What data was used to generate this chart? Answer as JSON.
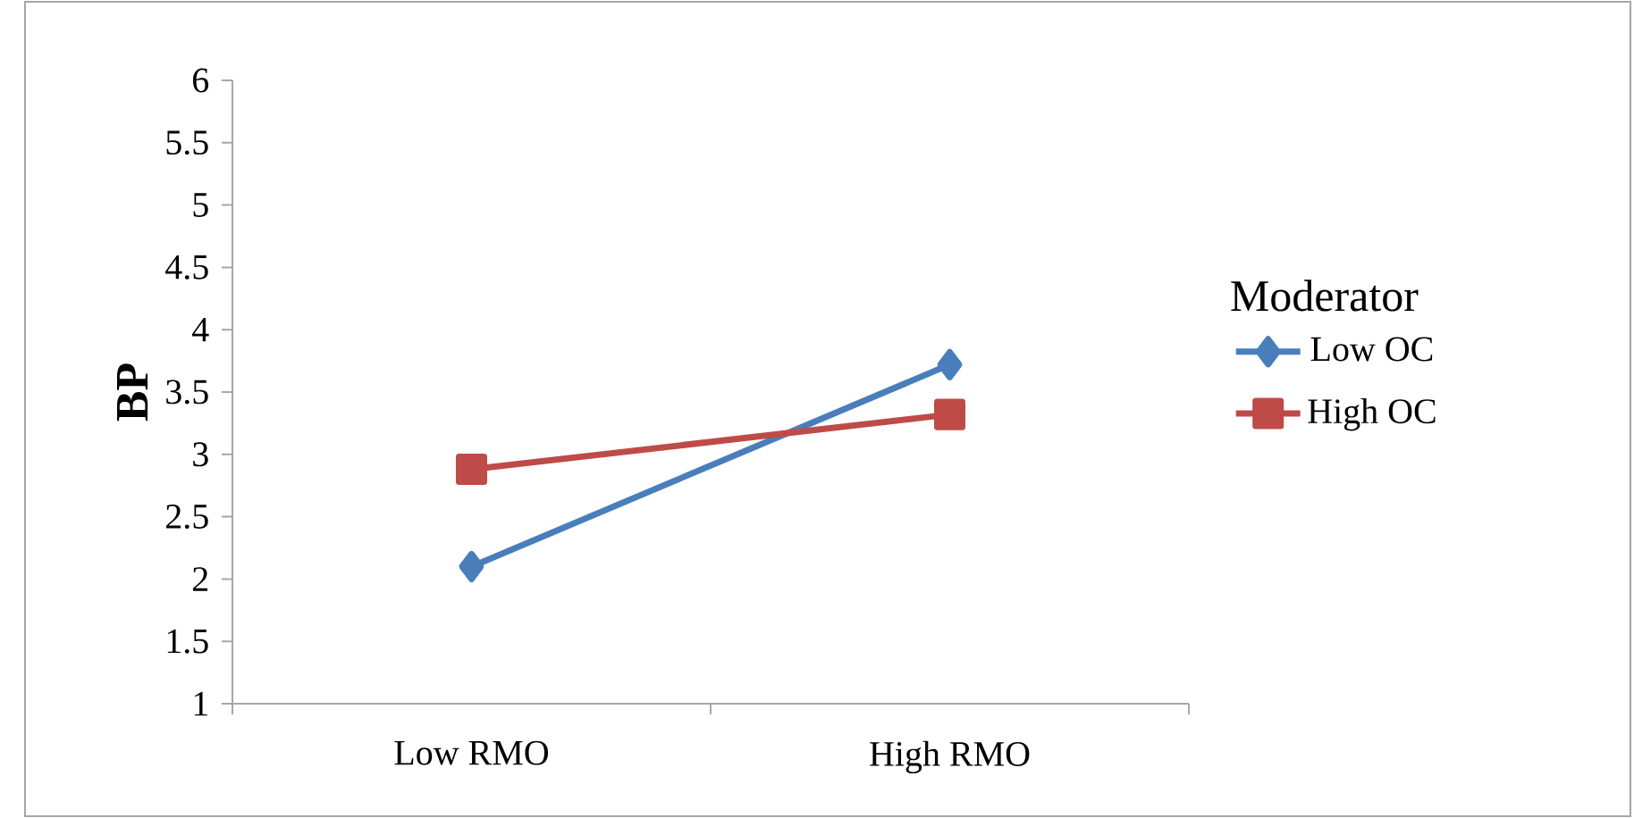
{
  "chart_data": {
    "type": "line",
    "ylabel": "BP",
    "legend_title": "Moderator",
    "categories": [
      "Low RMO",
      "High RMO"
    ],
    "series": [
      {
        "name": "Low OC",
        "color": "#4a7ebb",
        "marker": "diamond",
        "values": [
          2.1,
          3.72
        ]
      },
      {
        "name": "High OC",
        "color": "#be4b48",
        "marker": "square",
        "values": [
          2.88,
          3.32
        ]
      }
    ],
    "ylim": [
      1,
      6
    ],
    "yticks": [
      1,
      1.5,
      2,
      2.5,
      3,
      3.5,
      4,
      4.5,
      5,
      5.5,
      6
    ],
    "grid": false,
    "legend": "right",
    "line_style": "solid"
  }
}
